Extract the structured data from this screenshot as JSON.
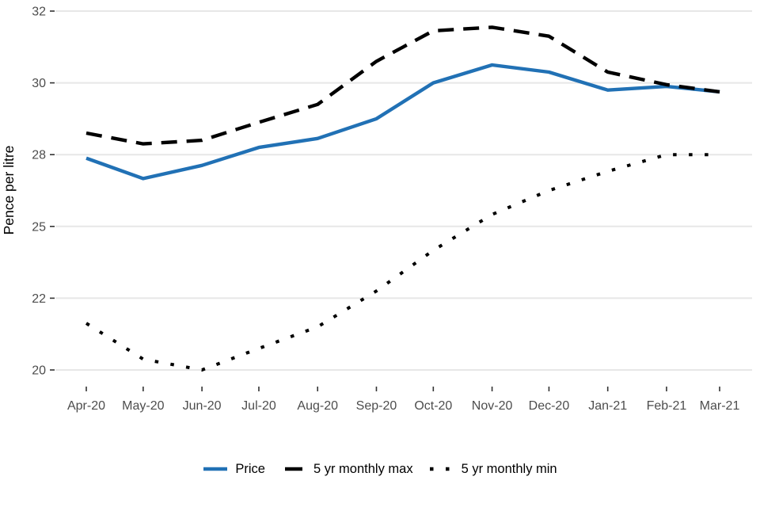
{
  "chart_data": {
    "type": "line",
    "title": "",
    "xlabel": "",
    "ylabel": "Pence per litre",
    "categories": [
      "Apr-20",
      "May-20",
      "Jun-20",
      "Jul-20",
      "Aug-20",
      "Sep-20",
      "Oct-20",
      "Nov-20",
      "Dec-20",
      "Jan-21",
      "Feb-21",
      "Mar-21"
    ],
    "y_breaks": [
      20,
      22,
      25,
      28,
      30,
      32
    ],
    "ylim_labels": [
      20,
      32
    ],
    "grid": "horizontal gridlines only, light grey",
    "legend_position": "bottom-center",
    "x_axis_type": "monthly dates",
    "series": [
      {
        "name": "Price",
        "line_style": "solid",
        "color": "#2171b5",
        "values": [
          27.85,
          27.0,
          27.55,
          28.2,
          28.45,
          29.0,
          30.0,
          30.5,
          30.3,
          29.8,
          29.9,
          29.75
        ]
      },
      {
        "name": "5 yr monthly max",
        "line_style": "dashed",
        "color": "#000000",
        "values": [
          28.6,
          28.3,
          28.4,
          28.9,
          29.4,
          30.6,
          31.45,
          31.55,
          31.3,
          30.3,
          29.95,
          29.75
        ]
      },
      {
        "name": "5 yr monthly min",
        "line_style": "dotted",
        "color": "#000000",
        "values": [
          21.3,
          20.3,
          20.0,
          20.6,
          21.2,
          22.3,
          24.0,
          25.5,
          26.5,
          27.3,
          28.0,
          28.0
        ]
      }
    ]
  },
  "style": {
    "background_color": "#ffffff",
    "gridline_color": "#e7e7e7",
    "tick_color": "#333333",
    "axis_text_color": "#4d4d4d",
    "axis_title_color": "#000000",
    "legend_text_color": "#000000"
  }
}
